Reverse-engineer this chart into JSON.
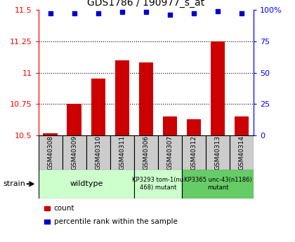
{
  "title": "GDS1786 / 190977_s_at",
  "samples": [
    "GSM40308",
    "GSM40309",
    "GSM40310",
    "GSM40311",
    "GSM40306",
    "GSM40307",
    "GSM40312",
    "GSM40313",
    "GSM40314"
  ],
  "counts": [
    10.52,
    10.75,
    10.95,
    11.1,
    11.08,
    10.65,
    10.63,
    11.25,
    10.65
  ],
  "percentile": [
    97,
    97,
    97,
    98,
    98,
    96,
    97,
    98.5,
    97
  ],
  "ylim_left": [
    10.5,
    11.5
  ],
  "ylim_right": [
    0,
    100
  ],
  "yticks_left": [
    10.5,
    10.75,
    11.0,
    11.25,
    11.5
  ],
  "ytick_labels_left": [
    "10.5",
    "10.75",
    "11",
    "11.25",
    "11.5"
  ],
  "yticks_right": [
    0,
    25,
    50,
    75,
    100
  ],
  "ytick_labels_right": [
    "0",
    "25",
    "50",
    "75",
    "100%"
  ],
  "bar_color": "#cc0000",
  "dot_color": "#0000cc",
  "tick_bg_color": "#cccccc",
  "group_light": "#ccffcc",
  "group_dark": "#66cc66",
  "legend_items": [
    {
      "color": "#cc0000",
      "label": "count"
    },
    {
      "color": "#0000cc",
      "label": "percentile rank within the sample"
    }
  ]
}
